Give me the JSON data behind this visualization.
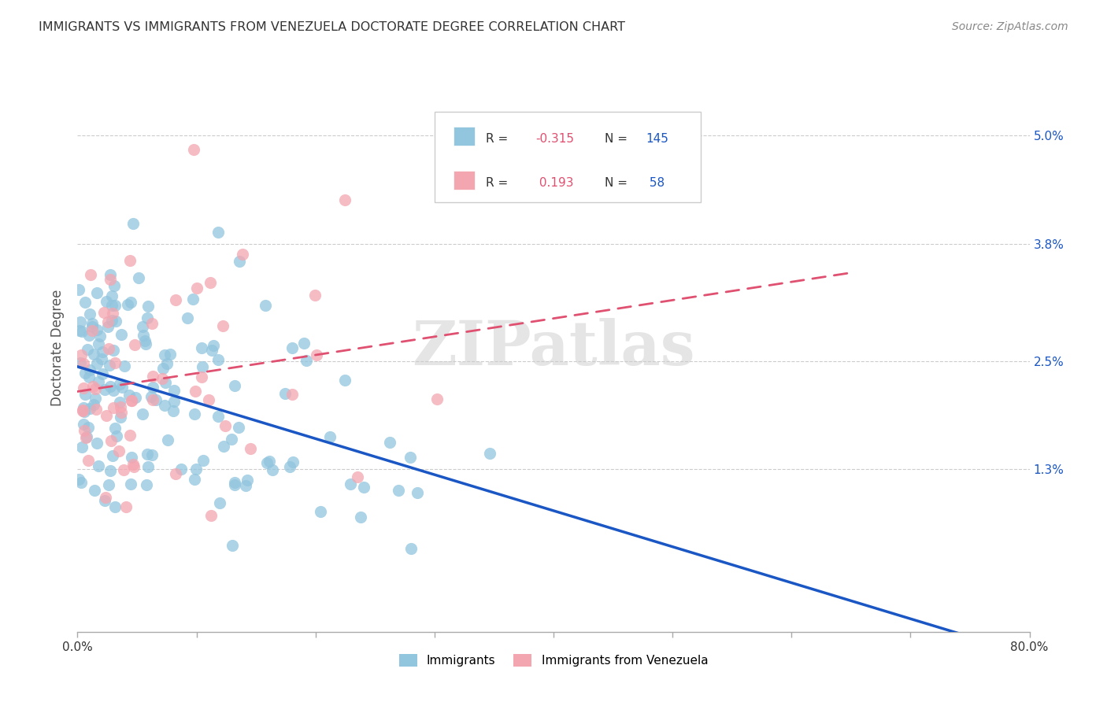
{
  "title": "IMMIGRANTS VS IMMIGRANTS FROM VENEZUELA DOCTORATE DEGREE CORRELATION CHART",
  "source": "Source: ZipAtlas.com",
  "ylabel": "Doctorate Degree",
  "ytick_labels": [
    "1.3%",
    "2.5%",
    "3.8%",
    "5.0%"
  ],
  "ytick_values": [
    0.013,
    0.025,
    0.038,
    0.05
  ],
  "xlim": [
    0.0,
    0.8
  ],
  "ylim": [
    -0.005,
    0.058
  ],
  "color_blue": "#92C5DE",
  "color_pink": "#F4A6B0",
  "line_blue": "#1A56C4",
  "line_pink": "#E05070",
  "background": "#FFFFFF",
  "watermark": "ZIPatlas",
  "r_blue": -0.315,
  "n_blue": 145,
  "r_pink": 0.193,
  "n_pink": 58
}
